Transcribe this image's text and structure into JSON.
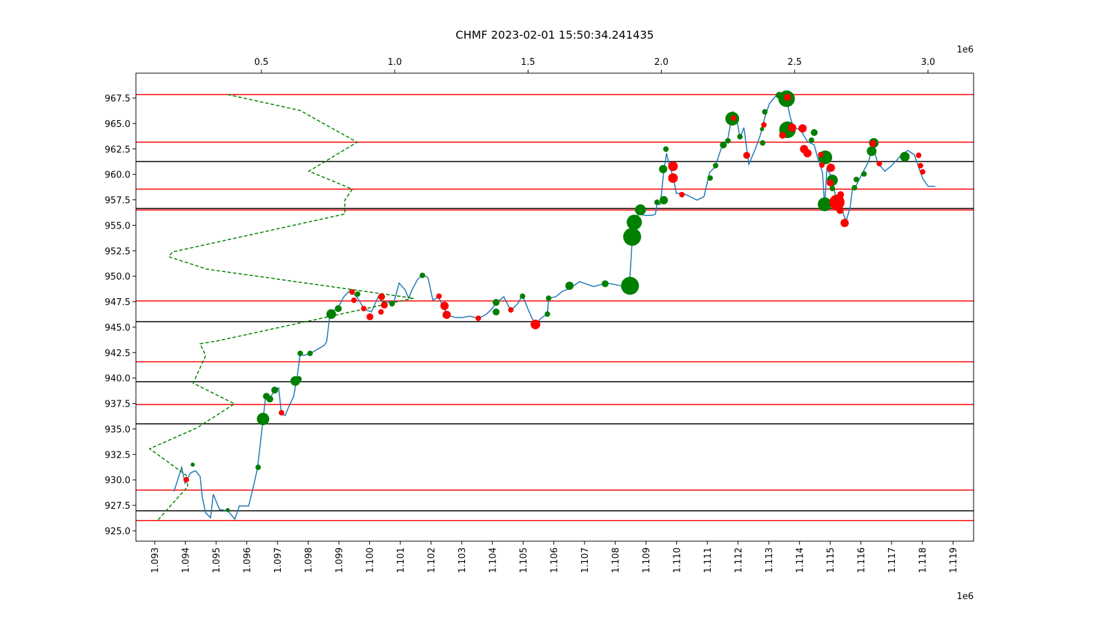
{
  "chart_data": {
    "type": "line",
    "title": "CHMF 2023-02-01 15:50:34.241435",
    "x_offset_label": "1e6",
    "x2_offset_label": "1e6",
    "xlim": [
      1.09239,
      1.11967
    ],
    "xticks": [
      1.093,
      1.094,
      1.095,
      1.096,
      1.097,
      1.098,
      1.099,
      {
        "value": 1.1,
        "label": "1.100"
      },
      1.101,
      1.102,
      1.103,
      1.104,
      1.105,
      1.106,
      1.107,
      1.108,
      1.109,
      {
        "value": 1.11,
        "label": "1.110"
      },
      1.111,
      1.112,
      1.113,
      1.114,
      1.115,
      1.116,
      1.117,
      1.118,
      1.119
    ],
    "x2lim": [
      0.0294,
      3.171
    ],
    "x2ticks": [
      0.5,
      {
        "value": 1,
        "label": "1.0"
      },
      1.5,
      {
        "value": 2,
        "label": "2.0"
      },
      2.5,
      {
        "value": 3,
        "label": "3.0"
      }
    ],
    "ylim": [
      923.98,
      969.94
    ],
    "yticks": [
      {
        "value": 925,
        "label": "925.0"
      },
      927.5,
      {
        "value": 930,
        "label": "930.0"
      },
      932.5,
      {
        "value": 935,
        "label": "935.0"
      },
      937.5,
      {
        "value": 940,
        "label": "940.0"
      },
      942.5,
      {
        "value": 945,
        "label": "945.0"
      },
      947.5,
      {
        "value": 950,
        "label": "950.0"
      },
      952.5,
      {
        "value": 955,
        "label": "955.0"
      },
      957.5,
      {
        "value": 960,
        "label": "960.0"
      },
      962.5,
      {
        "value": 965,
        "label": "965.0"
      },
      967.5
    ],
    "hlines": [
      {
        "color": "#ff0000",
        "values": [
          967.84,
          963.16,
          958.55,
          956.5,
          947.57,
          941.6,
          937.4,
          929.0,
          926.0
        ]
      },
      {
        "color": "#000000",
        "values": [
          961.26,
          956.65,
          945.54,
          939.64,
          935.5,
          926.96
        ]
      }
    ],
    "series": [
      {
        "color": "#1f77b4",
        "dashed": false,
        "x": [
          1.09363,
          1.09388,
          1.09399,
          1.09417,
          1.09433,
          1.09448,
          1.09455,
          1.09466,
          1.09482,
          1.09491,
          1.09511,
          1.09538,
          1.09561,
          1.09576,
          1.09606,
          1.09619,
          1.09635,
          1.09653,
          1.09662,
          1.09678,
          1.09691,
          1.09704,
          1.09713,
          1.09725,
          1.09736,
          1.09752,
          1.09763,
          1.09774,
          1.09785,
          1.09808,
          1.09853,
          1.0986,
          1.09871,
          1.09898,
          1.09916,
          1.09938,
          1.09961,
          1.09983,
          1.10006,
          1.10028,
          1.10048,
          1.10066,
          1.10078,
          1.10096,
          1.10116,
          1.10127,
          1.10138,
          1.10156,
          1.10172,
          1.1019,
          1.10206,
          1.10224,
          1.10242,
          1.10257,
          1.1028,
          1.10302,
          1.10325,
          1.10356,
          1.10381,
          1.10397,
          1.10415,
          1.10437,
          1.1046,
          1.10482,
          1.10498,
          1.10516,
          1.10538,
          1.10561,
          1.10579,
          1.10583,
          1.10606,
          1.10628,
          1.10651,
          1.10684,
          1.10729,
          1.10774,
          1.1083,
          1.10846,
          1.10855,
          1.10864,
          1.10875,
          1.10898,
          1.1092,
          1.10931,
          1.10936,
          1.10947,
          1.10958,
          1.10967,
          1.10976,
          1.10988,
          1.10999,
          1.11021,
          1.11044,
          1.11066,
          1.11089,
          1.11107,
          1.11125,
          1.11145,
          1.11167,
          1.11183,
          1.11197,
          1.11206,
          1.11219,
          1.11235,
          1.11257,
          1.11273,
          1.11287,
          1.11302,
          1.11325,
          1.11336,
          1.11347,
          1.11358,
          1.1137,
          1.11381,
          1.11403,
          1.11426,
          1.11448,
          1.1146,
          1.11475,
          1.11482,
          1.11489,
          1.11504,
          1.1152,
          1.11534,
          1.11543,
          1.11552,
          1.11565,
          1.11572,
          1.11583,
          1.11606,
          1.11624,
          1.11639,
          1.11655,
          1.11678,
          1.117,
          1.11729,
          1.11752,
          1.11774,
          1.1179,
          1.11803,
          1.11819,
          1.11842
        ],
        "values": [
          928.86,
          931.23,
          929.67,
          930.69,
          930.89,
          930.35,
          928.32,
          926.76,
          926.28,
          928.59,
          927.1,
          926.96,
          926.15,
          927.44,
          927.44,
          929.0,
          931.16,
          935.91,
          938.35,
          938.15,
          938.82,
          939.03,
          936.45,
          936.32,
          937.13,
          938.15,
          939.84,
          942.42,
          942.21,
          942.42,
          943.23,
          943.57,
          946.28,
          946.96,
          947.98,
          948.65,
          947.84,
          946.76,
          946.49,
          947.98,
          947.3,
          947.5,
          947.3,
          949.33,
          948.65,
          947.84,
          948.65,
          949.67,
          950.15,
          949.87,
          947.64,
          947.98,
          946.82,
          946.15,
          945.94,
          945.94,
          946.08,
          945.87,
          946.28,
          946.76,
          947.43,
          947.98,
          946.62,
          947.3,
          948.11,
          946.76,
          945.26,
          945.94,
          946.28,
          947.84,
          947.98,
          948.52,
          948.79,
          949.47,
          948.99,
          949.33,
          948.99,
          949.06,
          953.4,
          955.43,
          956.11,
          955.98,
          955.98,
          956.11,
          957.06,
          957.06,
          960.31,
          962.08,
          960.86,
          959.84,
          958.14,
          958.14,
          957.81,
          957.47,
          957.81,
          960.18,
          960.72,
          962.55,
          963.57,
          966.14,
          965.26,
          963.57,
          964.59,
          960.99,
          962.55,
          963.91,
          965.6,
          966.96,
          967.77,
          967.3,
          966.96,
          967.3,
          965.6,
          964.59,
          964.38,
          963.23,
          962.89,
          961.53,
          960.18,
          956.79,
          960.52,
          959.84,
          957.47,
          957.47,
          956.11,
          955.43,
          956.79,
          958.48,
          958.82,
          960.18,
          961.2,
          962.75,
          961.13,
          960.31,
          960.86,
          961.81,
          962.35,
          961.94,
          960.52,
          959.5,
          958.82,
          958.82
        ]
      },
      {
        "color": "#008000",
        "dashed": true,
        "axis": "x2",
        "x": [
          0.373,
          0.645,
          0.859,
          0.678,
          0.841,
          0.813,
          0.813,
          0.166,
          0.153,
          0.296,
          1.071,
          0.334,
          0.27,
          0.291,
          0.244,
          0.399,
          0.257,
          0.081,
          0.223,
          0.223,
          0.11
        ],
        "values": [
          967.84,
          966.28,
          963.16,
          960.31,
          958.55,
          957.47,
          956.11,
          952.38,
          951.91,
          950.69,
          947.84,
          943.64,
          943.37,
          942.21,
          939.5,
          937.47,
          935.09,
          933.06,
          930.35,
          929.33,
          926.0
        ]
      }
    ],
    "scatter": [
      {
        "color": "#008000",
        "x": [
          1.09653,
          1.09664,
          1.09675,
          1.09691,
          1.09758,
          1.0977,
          1.09774,
          1.09806,
          1.09637,
          1.09875,
          1.09898,
          1.09961,
          1.10048,
          1.10073,
          1.10172,
          1.10412,
          1.10412,
          1.10498,
          1.10579,
          1.10583,
          1.10651,
          1.10767,
          1.10848,
          1.10855,
          1.10862,
          1.10882,
          1.10936,
          1.10958,
          1.10956,
          1.10965,
          1.11109,
          1.11127,
          1.11152,
          1.11167,
          1.11181,
          1.11206,
          1.11278,
          1.1128,
          1.11287,
          1.11334,
          1.11358,
          1.11361,
          1.11448,
          1.11439,
          1.11484,
          1.11482,
          1.11507,
          1.11507,
          1.11585,
          1.11579,
          1.1161,
          1.11635,
          1.11642,
          1.11743,
          1.09424,
          1.09538
        ],
        "values": [
          935.98,
          938.21,
          937.94,
          938.82,
          939.71,
          939.91,
          942.42,
          942.42,
          931.23,
          946.28,
          946.82,
          948.25,
          947.3,
          947.3,
          950.08,
          947.43,
          946.49,
          948.04,
          946.28,
          947.84,
          949.06,
          949.26,
          949.06,
          953.87,
          955.3,
          956.52,
          957.26,
          957.47,
          960.52,
          962.48,
          959.64,
          960.86,
          962.89,
          963.3,
          965.47,
          963.7,
          964.45,
          963.09,
          966.14,
          967.77,
          967.43,
          964.38,
          964.11,
          963.36,
          961.67,
          957.06,
          959.43,
          958.62,
          959.5,
          958.69,
          960.04,
          962.28,
          963.09,
          961.74,
          931.5,
          927.03
        ],
        "sizes": [
          81,
          25,
          25,
          25,
          49,
          16,
          16,
          16,
          16,
          49,
          25,
          16,
          16,
          16,
          16,
          25,
          25,
          16,
          16,
          16,
          36,
          25,
          169,
          169,
          121,
          64,
          16,
          36,
          36,
          16,
          16,
          16,
          25,
          16,
          100,
          16,
          9,
          16,
          16,
          25,
          144,
          144,
          25,
          16,
          100,
          100,
          64,
          16,
          16,
          16,
          16,
          49,
          49,
          49,
          9,
          9
        ]
      },
      {
        "color": "#ff0000",
        "x": [
          1.09403,
          1.09713,
          1.09943,
          1.09949,
          1.09981,
          1.10001,
          1.10039,
          1.10048,
          1.10037,
          1.10226,
          1.10244,
          1.10251,
          1.10354,
          1.1046,
          1.1054,
          1.10988,
          1.10988,
          1.11017,
          1.11185,
          1.11228,
          1.11284,
          1.11345,
          1.11361,
          1.11376,
          1.1141,
          1.11415,
          1.11426,
          1.11469,
          1.11473,
          1.11502,
          1.115,
          1.11522,
          1.11534,
          1.11532,
          1.11547,
          1.1166,
          1.11788,
          1.11794,
          1.11801,
          1.11639
        ],
        "values": [
          930.01,
          936.59,
          948.45,
          947.64,
          946.82,
          946.01,
          947.98,
          947.16,
          946.49,
          948.04,
          947.09,
          946.21,
          945.87,
          946.69,
          945.26,
          960.79,
          959.64,
          958.01,
          965.53,
          961.87,
          964.86,
          963.84,
          967.57,
          964.59,
          964.52,
          962.48,
          962.08,
          961.94,
          960.92,
          960.65,
          959.16,
          957.26,
          958.01,
          956.45,
          955.23,
          961.06,
          961.87,
          960.86,
          960.25,
          963.03
        ],
        "sizes": [
          16,
          16,
          16,
          16,
          16,
          25,
          25,
          25,
          16,
          16,
          36,
          36,
          16,
          16,
          49,
          49,
          49,
          16,
          16,
          25,
          16,
          25,
          25,
          36,
          36,
          36,
          36,
          16,
          16,
          36,
          25,
          121,
          25,
          25,
          36,
          16,
          16,
          16,
          16,
          25
        ]
      }
    ]
  }
}
